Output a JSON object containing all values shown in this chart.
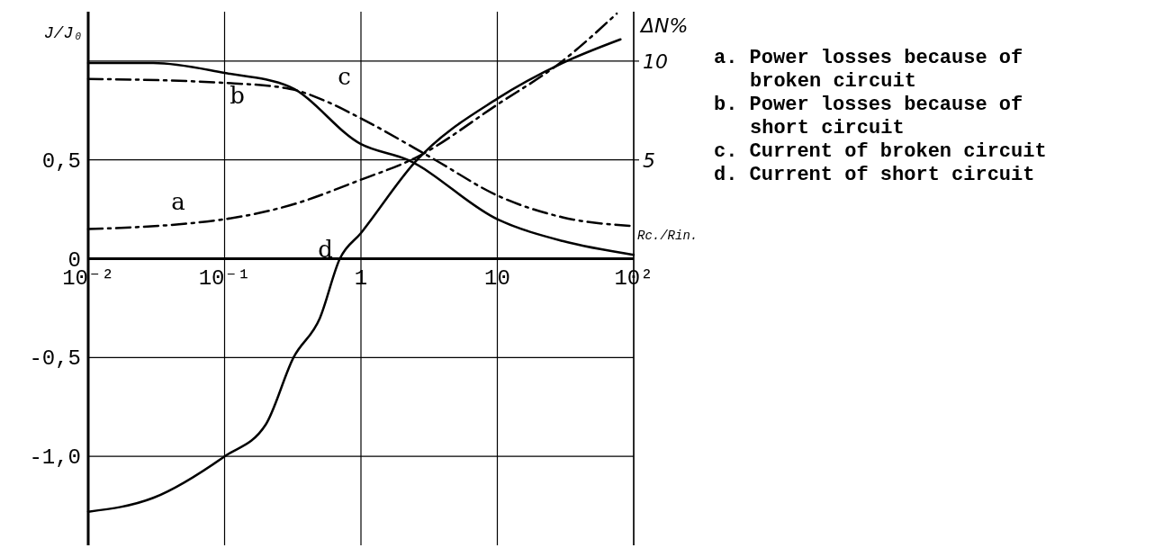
{
  "chart_data": {
    "type": "line",
    "xlabel": "Rc./Rin.",
    "ylabel": "J/J₀",
    "y2label": "ΔN%",
    "log": "x",
    "xlim": [
      0.01,
      100
    ],
    "xticks": [
      {
        "value": 0.01,
        "label": "10⁻²"
      },
      {
        "value": 0.1,
        "label": "10⁻¹"
      },
      1,
      10,
      {
        "value": 100,
        "label": "10²"
      }
    ],
    "ylim": [
      -1.45,
      1.25
    ],
    "yticks": [
      {
        "value": -1,
        "label": "-1,0"
      },
      {
        "value": -0.5,
        "label": "-0,5"
      },
      0,
      {
        "value": 0.5,
        "label": "0,5"
      },
      {
        "value": 1,
        "label": null
      }
    ],
    "y2lim": [
      -14.5,
      12.5
    ],
    "y2ticks": [
      5,
      10
    ],
    "grid": true,
    "marker": "none",
    "series": [
      {
        "name": "a",
        "color": "#000000",
        "axis": "y2",
        "line_style": "dashed",
        "x": [
          0.01,
          0.1,
          0.3,
          1,
          2.5,
          10,
          30,
          75
        ],
        "values": [
          1.5,
          2.0,
          2.7,
          4.0,
          5.1,
          7.8,
          10.0,
          12.4
        ]
      },
      {
        "name": "b",
        "color": "#000000",
        "axis": "y2",
        "line_style": "solid",
        "x": [
          0.01,
          0.03,
          0.1,
          0.3,
          1,
          2.2,
          10,
          30,
          100
        ],
        "values": [
          9.9,
          9.9,
          9.4,
          8.7,
          5.8,
          5.0,
          2.0,
          0.9,
          0.2
        ]
      },
      {
        "name": "c",
        "color": "#000000",
        "line_style": "dashed",
        "x": [
          0.01,
          0.1,
          0.3,
          0.54,
          1,
          3.5,
          10,
          30,
          100
        ],
        "values": [
          0.91,
          0.89,
          0.86,
          0.8,
          0.71,
          0.5,
          0.32,
          0.21,
          0.165
        ]
      },
      {
        "name": "d",
        "color": "#000000",
        "line_style": "solid",
        "x": [
          0.01,
          0.03,
          0.1,
          0.2,
          0.32,
          0.5,
          0.7,
          1,
          2.5,
          10,
          30,
          80
        ],
        "values": [
          -1.28,
          -1.21,
          -1.0,
          -0.84,
          -0.5,
          -0.3,
          0.0,
          0.13,
          0.49,
          0.81,
          0.99,
          1.11
        ]
      }
    ],
    "annotations": [
      "a. Power losses because of broken circuit",
      "b. Power losses because of short circuit",
      "c. Current of broken circuit",
      "d. Current of short circuit"
    ]
  }
}
